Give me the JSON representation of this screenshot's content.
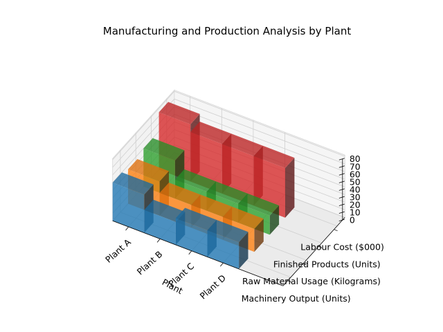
{
  "chart_data": {
    "type": "bar3d",
    "title": "Manufacturing and Production Analysis by Plant",
    "xlabel": "Plant",
    "ylabel": "",
    "zlabel": "",
    "categories": [
      "Plant A",
      "Plant B",
      "Plant C",
      "Plant D"
    ],
    "series": [
      {
        "name": "Machinery Output (Units)",
        "values": [
          50,
          30,
          35,
          35
        ],
        "color": "#1f77b4"
      },
      {
        "name": "Raw Material Usage (Kilograms)",
        "values": [
          45,
          30,
          30,
          30
        ],
        "color": "#ff7f0e"
      },
      {
        "name": "Finished Products (Units)",
        "values": [
          50,
          25,
          25,
          25
        ],
        "color": "#2ca02c"
      },
      {
        "name": "Labour Cost ($000)",
        "values": [
          75,
          65,
          65,
          65
        ],
        "color": "#d62728"
      }
    ],
    "zticks": [
      0,
      10,
      20,
      30,
      40,
      50,
      60,
      70,
      80
    ],
    "zlim": [
      0,
      80
    ],
    "grid": true
  }
}
